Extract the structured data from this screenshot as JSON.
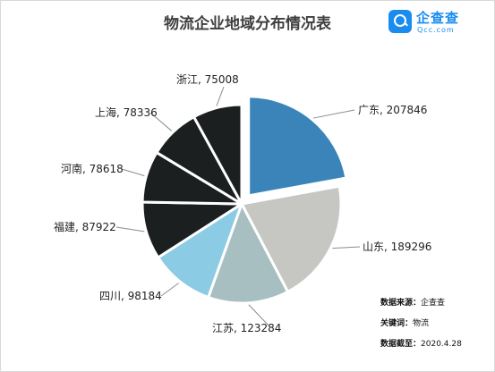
{
  "chart_data": {
    "type": "pie",
    "title": "物流企业地域分布情况表",
    "slices": [
      {
        "label": "广东",
        "value": 207846,
        "color": "#3a84b9",
        "exploded": true
      },
      {
        "label": "山东",
        "value": 189296,
        "color": "#c6c7c3"
      },
      {
        "label": "江苏",
        "value": 123284,
        "color": "#a7bfc0"
      },
      {
        "label": "四川",
        "value": 98184,
        "color": "#8ccbe4"
      },
      {
        "label": "福建",
        "value": 87922,
        "color": "#1c1f20"
      },
      {
        "label": "河南",
        "value": 78618,
        "color": "#1c1f20"
      },
      {
        "label": "上海",
        "value": 78336,
        "color": "#1c1f20"
      },
      {
        "label": "浙江",
        "value": 75008,
        "color": "#1c1f20"
      }
    ],
    "label_format": "{label}, {value}",
    "legend": "none"
  },
  "logo": {
    "name": "企查查",
    "sub": "Qcc.com",
    "color": "#1a8cf0"
  },
  "info": {
    "source_key": "数据来源：",
    "source_val": "企查查",
    "keyword_key": "关键词：",
    "keyword_val": "物流",
    "cutoff_key": "数据截至：",
    "cutoff_val": "2020.4.28"
  }
}
